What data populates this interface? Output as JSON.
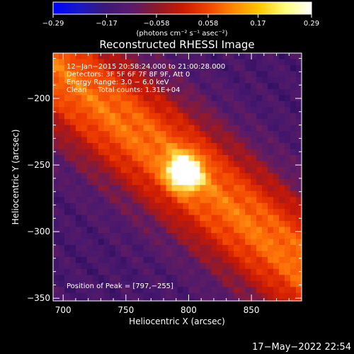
{
  "chart_data": {
    "type": "heatmap",
    "title": "Reconstructed RHESSI Image",
    "xlabel": "Heliocentric X (arcsec)",
    "ylabel": "Heliocentric Y (arcsec)",
    "xlim": [
      692,
      890
    ],
    "ylim": [
      -352,
      -166
    ],
    "x_ticks": [
      700,
      750,
      800,
      850
    ],
    "y_ticks": [
      -200,
      -250,
      -300,
      -350
    ],
    "x_tick_labels": [
      "700",
      "750",
      "800",
      "850"
    ],
    "y_tick_labels": [
      "−200",
      "−250",
      "−300",
      "−350"
    ],
    "colorbar": {
      "range": [
        -0.29,
        0.29
      ],
      "tick_values": [
        -0.29,
        -0.17,
        -0.058,
        0.058,
        0.17,
        0.29
      ],
      "tick_labels": [
        "−0.29",
        "−0.17",
        "−0.058",
        "0.058",
        "0.17",
        "0.29"
      ],
      "label": "(photons cm⁻² s⁻¹ asec⁻²)",
      "colors": [
        "#0000ff",
        "#1818c8",
        "#3a1878",
        "#5a1a6e",
        "#8a1a2a",
        "#c81a00",
        "#f04400",
        "#ff8a00",
        "#ffc800",
        "#ffff80",
        "#ffffff"
      ]
    },
    "annotations": [
      "12−Jan−2015 20:58:24.000 to 21:00:28.000",
      "Detectors: 3F 5F 6F 7F 8F 9F, Att 0",
      "Energy Range: 3.0 − 6.0 keV",
      "Clean     Total counts: 1.31E+04"
    ],
    "peak_label": "Position of Peak = [797,−255]",
    "peak_position": [
      797,
      -255
    ],
    "grid": false
  },
  "footer": {
    "date": "17−May−2022 22:54"
  }
}
